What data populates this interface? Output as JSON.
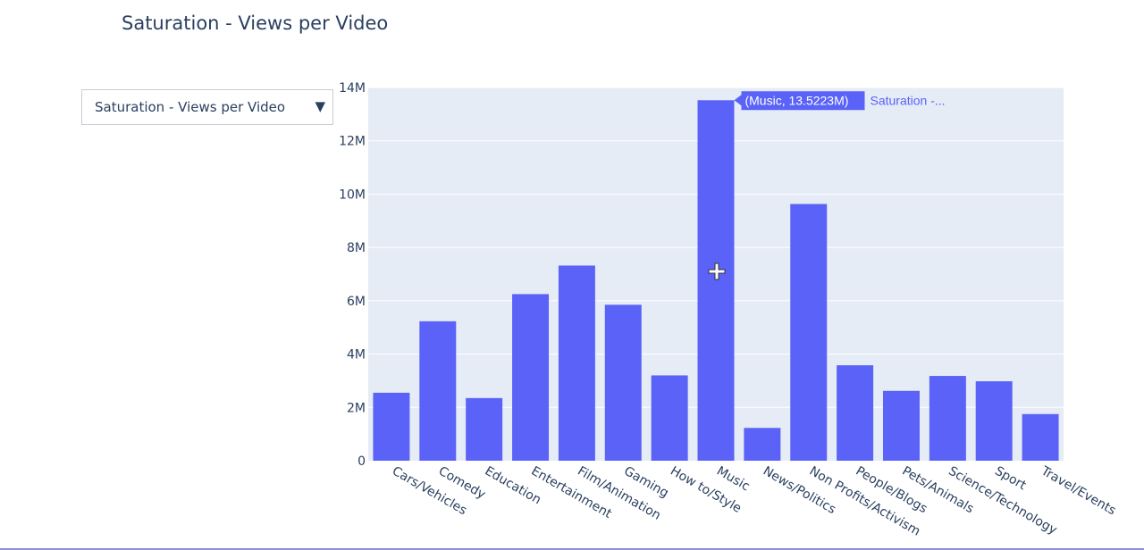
{
  "page": {
    "title": "Saturation - Views per Video"
  },
  "dropdown": {
    "selected": "Saturation - Views per Video",
    "arrow_icon": "triangle-down-icon"
  },
  "hover": {
    "label": "(Music, 13.5223M)",
    "series_label": "Saturation -..."
  },
  "colors": {
    "bar": "#5a62f7",
    "plot_bg": "#e5ecf6",
    "grid": "#ffffff",
    "text": "#2a3f5f"
  },
  "chart_data": {
    "type": "bar",
    "title": "Saturation - Views per Video",
    "xlabel": "",
    "ylabel": "",
    "categories": [
      "Cars/Vehicles",
      "Comedy",
      "Education",
      "Entertainment",
      "Film/Animation",
      "Gaming",
      "How to/Style",
      "Music",
      "News/Politics",
      "Non Profits/Activism",
      "People/Blogs",
      "Pets/Animals",
      "Science/Technology",
      "Sport",
      "Travel/Events"
    ],
    "series": [
      {
        "name": "Saturation - Views per Video",
        "values": [
          2550000,
          5230000,
          2350000,
          6250000,
          7320000,
          5850000,
          3200000,
          13522300,
          1230000,
          9630000,
          3580000,
          2620000,
          3180000,
          2980000,
          1750000
        ]
      }
    ],
    "ylim": [
      0,
      14000000
    ],
    "yticks": [
      0,
      2000000,
      4000000,
      6000000,
      8000000,
      10000000,
      12000000,
      14000000
    ],
    "ytick_labels": [
      "0",
      "2M",
      "4M",
      "6M",
      "8M",
      "10M",
      "12M",
      "14M"
    ],
    "grid": true,
    "legend": "none"
  }
}
